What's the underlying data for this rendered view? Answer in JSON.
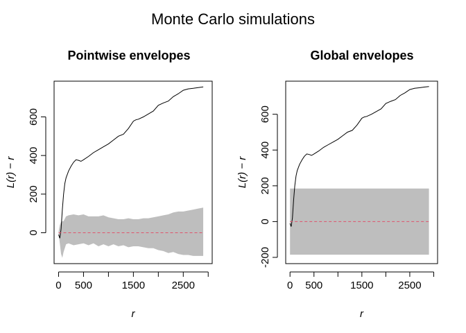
{
  "figure": {
    "title": "Monte Carlo simulations"
  },
  "chart_data": [
    {
      "type": "line",
      "title": "Pointwise envelopes",
      "xlabel": "r",
      "ylabel": "L(r) − r",
      "xlim": [
        -90,
        3080
      ],
      "ylim": [
        -160,
        785
      ],
      "x_ticks": [
        0,
        500,
        1000,
        1500,
        2000,
        2500,
        3000
      ],
      "x_tick_labels": [
        "0",
        "500",
        "",
        "1500",
        "",
        "2500",
        ""
      ],
      "y_ticks": [
        0,
        200,
        400,
        600
      ],
      "y_tick_labels": [
        "0",
        "200",
        "400",
        "600"
      ],
      "grid": false,
      "series": [
        {
          "role": "observed",
          "color": "#000000",
          "x": [
            0,
            25,
            50,
            75,
            100,
            125,
            150,
            200,
            250,
            300,
            350,
            400,
            450,
            500,
            600,
            700,
            800,
            900,
            1000,
            1100,
            1200,
            1300,
            1400,
            1500,
            1550,
            1600,
            1700,
            1800,
            1900,
            2000,
            2100,
            2200,
            2300,
            2400,
            2500,
            2600,
            2700,
            2800,
            2900
          ],
          "y": [
            -10,
            -28,
            20,
            120,
            200,
            255,
            285,
            320,
            345,
            365,
            378,
            375,
            370,
            378,
            395,
            415,
            430,
            445,
            460,
            480,
            500,
            510,
            540,
            578,
            585,
            588,
            600,
            615,
            630,
            660,
            672,
            682,
            705,
            720,
            738,
            745,
            748,
            752,
            755
          ]
        },
        {
          "role": "theoretical",
          "color": "#df536b",
          "x": [
            0,
            2900
          ],
          "y": [
            0,
            0
          ]
        }
      ],
      "envelope": {
        "color": "#bebebe",
        "x": [
          0,
          10,
          25,
          50,
          75,
          100,
          150,
          200,
          300,
          400,
          500,
          600,
          700,
          800,
          900,
          1000,
          1100,
          1200,
          1300,
          1400,
          1500,
          1600,
          1700,
          1800,
          1900,
          2000,
          2100,
          2200,
          2300,
          2400,
          2500,
          2600,
          2700,
          2800,
          2900
        ],
        "lo": [
          -5,
          -25,
          -55,
          -110,
          -130,
          -100,
          -60,
          -55,
          -65,
          -60,
          -55,
          -65,
          -55,
          -70,
          -60,
          -70,
          -60,
          -70,
          -65,
          -75,
          -70,
          -70,
          -75,
          -80,
          -80,
          -90,
          -95,
          -105,
          -100,
          -110,
          -115,
          -115,
          -120,
          -120,
          -120
        ],
        "hi": [
          5,
          20,
          40,
          55,
          60,
          60,
          85,
          90,
          95,
          90,
          95,
          85,
          85,
          85,
          90,
          80,
          75,
          70,
          70,
          75,
          70,
          70,
          75,
          75,
          80,
          85,
          90,
          95,
          105,
          110,
          110,
          115,
          120,
          125,
          130
        ]
      }
    },
    {
      "type": "line",
      "title": "Global envelopes",
      "xlabel": "r",
      "ylabel": "L(r) − r",
      "xlim": [
        -90,
        3080
      ],
      "ylim": [
        -235,
        785
      ],
      "x_ticks": [
        0,
        500,
        1000,
        1500,
        2000,
        2500,
        3000
      ],
      "x_tick_labels": [
        "0",
        "500",
        "",
        "1500",
        "",
        "2500",
        ""
      ],
      "y_ticks": [
        -200,
        0,
        200,
        400,
        600
      ],
      "y_tick_labels": [
        "-200",
        "0",
        "200",
        "400",
        "600"
      ],
      "grid": false,
      "series": [
        {
          "role": "observed",
          "color": "#000000",
          "x": [
            0,
            25,
            50,
            75,
            100,
            125,
            150,
            200,
            250,
            300,
            350,
            400,
            450,
            500,
            600,
            700,
            800,
            900,
            1000,
            1100,
            1200,
            1300,
            1400,
            1500,
            1550,
            1600,
            1700,
            1800,
            1900,
            2000,
            2100,
            2200,
            2300,
            2400,
            2500,
            2600,
            2700,
            2800,
            2900
          ],
          "y": [
            -10,
            -28,
            20,
            120,
            200,
            255,
            285,
            320,
            345,
            365,
            378,
            375,
            370,
            378,
            395,
            415,
            430,
            445,
            460,
            480,
            500,
            510,
            540,
            578,
            585,
            588,
            600,
            615,
            630,
            660,
            672,
            682,
            705,
            720,
            738,
            745,
            748,
            752,
            755
          ]
        },
        {
          "role": "theoretical",
          "color": "#df536b",
          "x": [
            0,
            2900
          ],
          "y": [
            0,
            0
          ]
        }
      ],
      "envelope": {
        "color": "#bebebe",
        "x": [
          0,
          2900
        ],
        "lo": [
          -185,
          -185
        ],
        "hi": [
          185,
          185
        ]
      }
    }
  ]
}
